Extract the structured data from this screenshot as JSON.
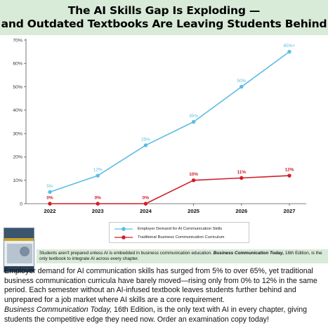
{
  "title": {
    "line1": "The AI Skills Gap Is Exploding —",
    "line2": "and Outdated Textbooks Are Leaving Students Behind"
  },
  "chart_data": {
    "type": "line",
    "categories": [
      "2022",
      "2023",
      "2024",
      "2025",
      "2026",
      "2027"
    ],
    "yticks": [
      "0",
      "10%",
      "20%",
      "30%",
      "40%",
      "50%",
      "60%",
      "70%"
    ],
    "ylim": [
      0,
      70
    ],
    "grid": false,
    "legend_position": "bottom-center",
    "series": [
      {
        "name": "Employer Demand for AI Communication Skills",
        "values": [
          5,
          12,
          25,
          35,
          50,
          65
        ],
        "labels": [
          "5%",
          "12%",
          "25%",
          "35%",
          "50%",
          "65%+"
        ],
        "color": "#5bbde4"
      },
      {
        "name": "Traditional Business Communication Curriculum",
        "values": [
          0,
          0,
          0,
          10,
          11,
          12
        ],
        "labels": [
          "0%",
          "0%",
          "0%",
          "10%",
          "11%",
          "12%"
        ],
        "color": "#d11f2a"
      }
    ]
  },
  "note": {
    "text": "Students aren't prepared unless AI is embedded in business communication education. ",
    "emph": "Business Communication Today,",
    "tail": " 16th Edition, is the only textbook to integrate AI across every chapter."
  },
  "body": {
    "para1": "Employer demand for AI communication skills has surged from 5% to over 65%, yet traditional business communication curricula have barely moved—rising only from 0% to 12% in the same period. Each semester without an AI-infused textbook leaves students further behind and unprepared for a job market where AI skills are a core requirement.",
    "para2_emph": "Business Communication Today,",
    "para2_tail": " 16th Edition, is the only text with AI in every chapter, giving students the competitive edge they need now. Order an examination copy today!"
  },
  "icons": {
    "book_cover": "textbook-cover-icon",
    "legend_marker_blue": "line-marker-icon",
    "legend_marker_red": "line-marker-icon"
  }
}
